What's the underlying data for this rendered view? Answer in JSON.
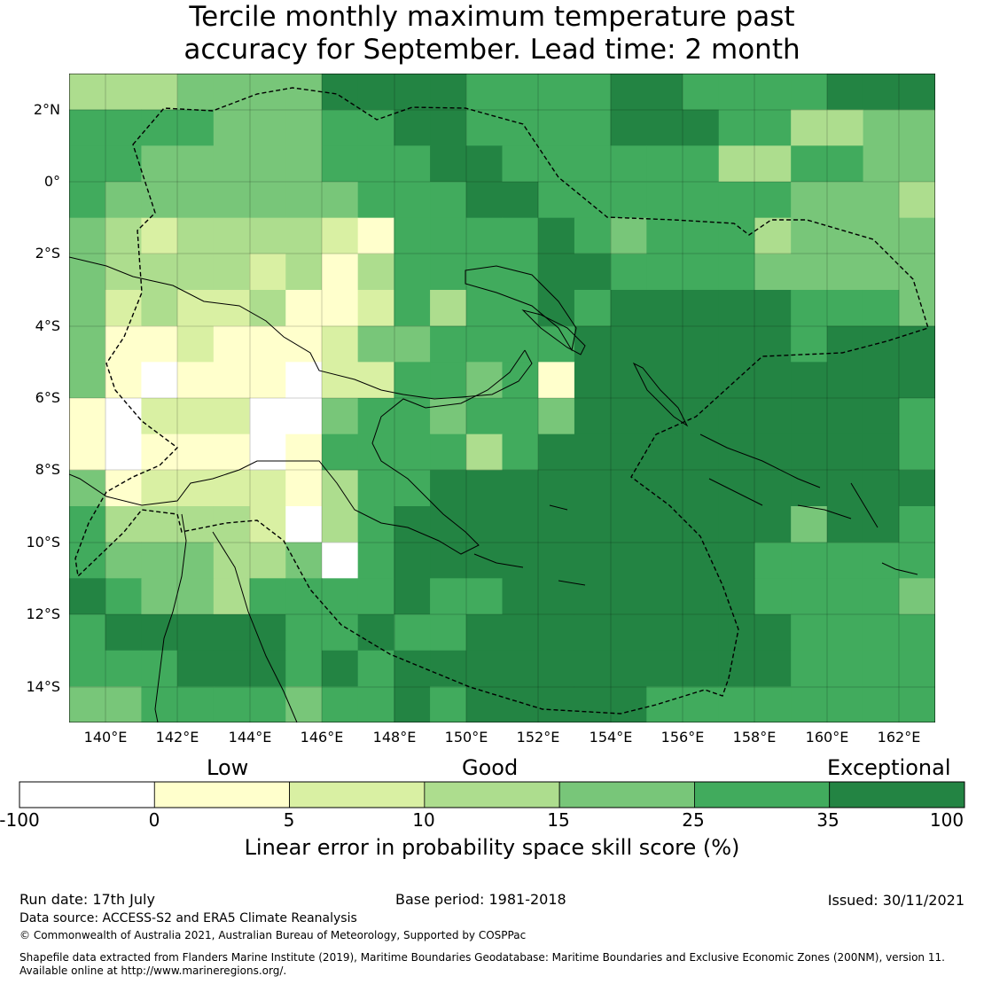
{
  "header": {
    "title_line1": "Tercile monthly maximum temperature past",
    "title_line2": "accuracy for September. Lead time: 2 month"
  },
  "map": {
    "lon_ticks": [
      "140°E",
      "142°E",
      "144°E",
      "146°E",
      "148°E",
      "150°E",
      "152°E",
      "154°E",
      "156°E",
      "158°E",
      "160°E",
      "162°E"
    ],
    "lat_ticks": [
      "2°N",
      "0°",
      "2°S",
      "4°S",
      "6°S",
      "8°S",
      "10°S",
      "12°S",
      "14°S"
    ],
    "extent": {
      "lon_min": 139,
      "lon_max": 163,
      "lat_min": -15,
      "lat_max": 3
    },
    "region_skill": {
      "north_ocean_rows_2N_to_1S": "25-35 with 35-100 patches",
      "eastern_central": "35-100",
      "western_papua": "-100 to 15",
      "south_coral_sea": "25-35"
    }
  },
  "colorbar": {
    "categories": [
      "Low",
      "Good",
      "Exceptional"
    ],
    "tick_labels": [
      "-100",
      "0",
      "5",
      "10",
      "15",
      "25",
      "35",
      "100"
    ],
    "colors": [
      "#ffffff",
      "#ffffcc",
      "#d9f0a3",
      "#addd8e",
      "#78c679",
      "#41ab5d",
      "#238443"
    ],
    "label": "Linear error in probability space skill score (%)"
  },
  "footer": {
    "run_date": "Run date: 17th July",
    "base_period": "Base period: 1981-2018",
    "issued": "Issued: 30/11/2021",
    "data_source": "Data source: ACCESS-S2 and ERA5 Climate Reanalysis",
    "copyright": "© Commonwealth of Australia 2021, Australian Bureau of Meteorology, Supported by COSPPac",
    "shapefile_line1": "Shapefile data extracted from Flanders Marine Institute (2019), Maritime Boundaries Geodatabase: Maritime Boundaries and Exclusive Economic Zones (200NM), version 11.",
    "shapefile_line2": "Available online at http://www.marineregions.org/."
  }
}
